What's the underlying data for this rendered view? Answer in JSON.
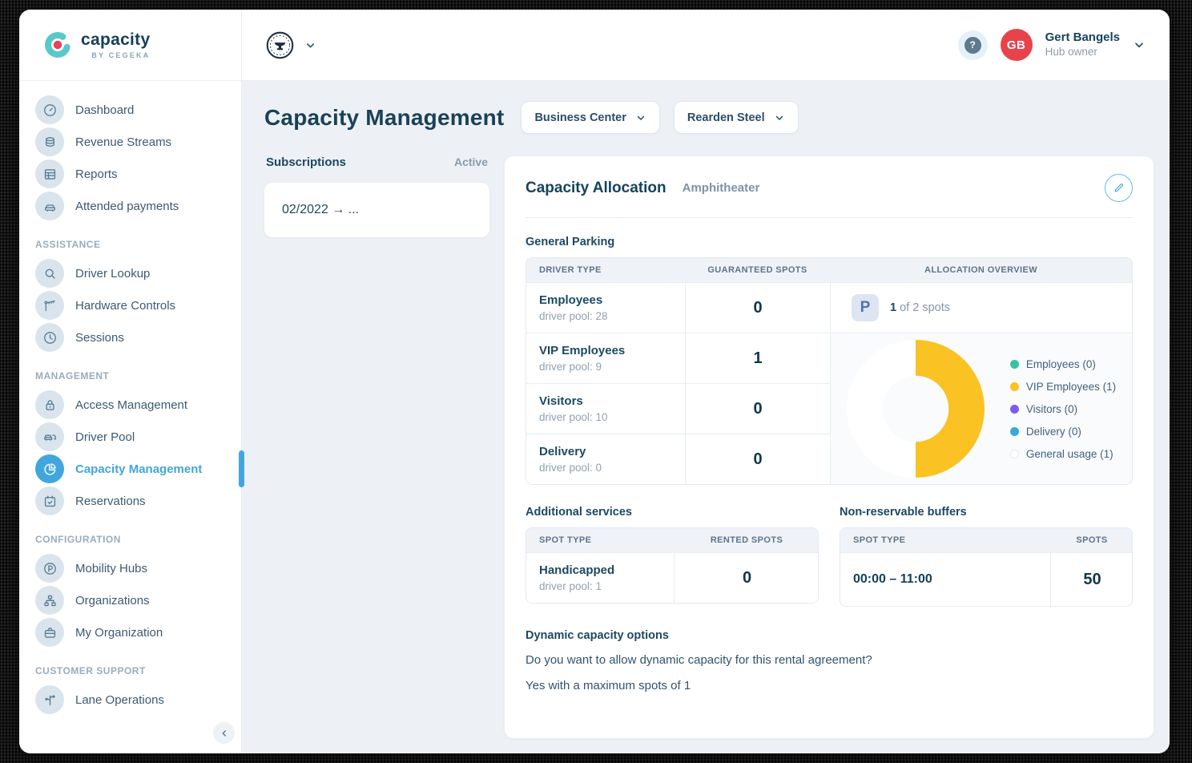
{
  "brand": {
    "name": "capacity",
    "tagline": "BY CEGEKA"
  },
  "header": {
    "help_label": "?",
    "user": {
      "name": "Gert Bangels",
      "role": "Hub owner",
      "initials": "GB"
    }
  },
  "sidebar": {
    "sections": [
      {
        "title": "",
        "items": [
          {
            "label": "Dashboard",
            "icon": "gauge-icon",
            "active": false
          },
          {
            "label": "Revenue Streams",
            "icon": "coins-icon",
            "active": false
          },
          {
            "label": "Reports",
            "icon": "report-table-icon",
            "active": false
          },
          {
            "label": "Attended payments",
            "icon": "car-payment-icon",
            "active": false
          }
        ]
      },
      {
        "title": "ASSISTANCE",
        "items": [
          {
            "label": "Driver Lookup",
            "icon": "search-icon",
            "active": false
          },
          {
            "label": "Hardware Controls",
            "icon": "barrier-icon",
            "active": false
          },
          {
            "label": "Sessions",
            "icon": "clock-icon",
            "active": false
          }
        ]
      },
      {
        "title": "MANAGEMENT",
        "items": [
          {
            "label": "Access Management",
            "icon": "lock-icon",
            "active": false
          },
          {
            "label": "Driver Pool",
            "icon": "cars-icon",
            "active": false
          },
          {
            "label": "Capacity Management",
            "icon": "pie-chart-icon",
            "active": true
          },
          {
            "label": "Reservations",
            "icon": "calendar-check-icon",
            "active": false
          }
        ]
      },
      {
        "title": "CONFIGURATION",
        "items": [
          {
            "label": "Mobility Hubs",
            "icon": "parking-circle-icon",
            "active": false
          },
          {
            "label": "Organizations",
            "icon": "org-chart-icon",
            "active": false
          },
          {
            "label": "My Organization",
            "icon": "briefcase-icon",
            "active": false
          }
        ]
      },
      {
        "title": "CUSTOMER SUPPORT",
        "items": [
          {
            "label": "Lane Operations",
            "icon": "lanes-icon",
            "active": false
          }
        ]
      }
    ]
  },
  "page": {
    "title": "Capacity Management",
    "filters": [
      {
        "label": "Business Center"
      },
      {
        "label": "Rearden Steel"
      }
    ]
  },
  "subscriptions": {
    "title": "Subscriptions",
    "status": "Active",
    "items": [
      {
        "label": "02/2022 → ..."
      }
    ]
  },
  "allocation": {
    "title": "Capacity Allocation",
    "subtitle": "Amphitheater",
    "general_parking": {
      "heading": "General Parking",
      "columns": [
        "DRIVER TYPE",
        "GUARANTEED SPOTS",
        "ALLOCATION OVERVIEW"
      ],
      "rows": [
        {
          "type": "Employees",
          "pool": "driver pool: 28",
          "spots": "0"
        },
        {
          "type": "VIP Employees",
          "pool": "driver pool: 9",
          "spots": "1"
        },
        {
          "type": "Visitors",
          "pool": "driver pool: 10",
          "spots": "0"
        },
        {
          "type": "Delivery",
          "pool": "driver pool: 0",
          "spots": "0"
        }
      ],
      "overview_summary": {
        "badge_letter": "P",
        "highlight": "1",
        "rest": " of 2 spots"
      }
    },
    "additional_services": {
      "heading": "Additional services",
      "columns": [
        "SPOT TYPE",
        "RENTED SPOTS"
      ],
      "rows": [
        {
          "type": "Handicapped",
          "pool": "driver pool: 1",
          "value": "0"
        }
      ]
    },
    "buffers": {
      "heading": "Non-reservable buffers",
      "columns": [
        "SPOT TYPE",
        "SPOTS"
      ],
      "rows": [
        {
          "type": "00:00 – 11:00",
          "pool": "",
          "value": "50"
        }
      ]
    },
    "dynamic": {
      "heading": "Dynamic capacity options",
      "question": "Do you want to allow dynamic capacity for this rental agreement?",
      "answer": "Yes with a maximum spots of 1"
    }
  },
  "chart_data": {
    "type": "pie",
    "title": "Allocation overview donut",
    "labels": [
      "Employees",
      "VIP Employees",
      "Visitors",
      "Delivery",
      "General usage"
    ],
    "values": [
      0,
      1,
      0,
      0,
      1
    ],
    "colors": [
      "#35c4a0",
      "#fac223",
      "#7a5cf5",
      "#3ba7d9",
      "#ffffff"
    ],
    "legend_position": "right",
    "donut_hole_ratio": 0.48
  },
  "colors": {
    "accent_blue": "#41a6de",
    "avatar_red": "#e8434b",
    "navy_text": "#16435e",
    "main_background": "#edf1f6"
  }
}
